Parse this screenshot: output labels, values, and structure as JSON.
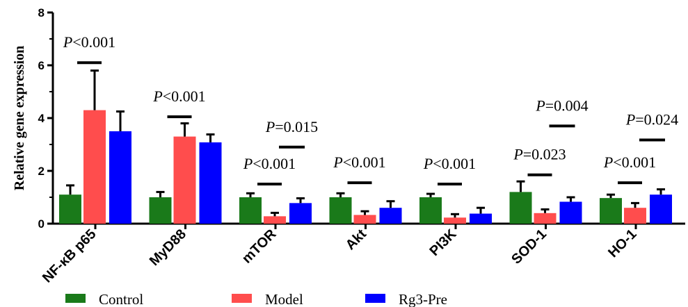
{
  "chart_data": {
    "type": "bar",
    "ylabel": "Relative gene expression",
    "xlabel": "",
    "ylim": [
      0,
      8
    ],
    "yticks": [
      "0",
      "2",
      "4",
      "6",
      "8"
    ],
    "categories": [
      "NF-κB p65",
      "MyD88",
      "mTOR",
      "Akt",
      "PI3K",
      "SOD-1",
      "HO-1"
    ],
    "series": [
      {
        "name": "Control",
        "color": "#1a7a1a",
        "values": [
          1.1,
          1.0,
          1.0,
          1.0,
          1.0,
          1.2,
          0.97
        ],
        "errors": [
          0.35,
          0.2,
          0.15,
          0.15,
          0.13,
          0.4,
          0.13
        ]
      },
      {
        "name": "Model",
        "color": "#ff4d4d",
        "values": [
          4.3,
          3.3,
          0.28,
          0.33,
          0.23,
          0.4,
          0.6
        ],
        "errors": [
          1.5,
          0.5,
          0.13,
          0.14,
          0.13,
          0.14,
          0.18
        ]
      },
      {
        "name": "Rg3-Pre",
        "color": "#0000ff",
        "values": [
          3.5,
          3.08,
          0.78,
          0.6,
          0.38,
          0.83,
          1.1
        ],
        "errors": [
          0.75,
          0.3,
          0.18,
          0.25,
          0.22,
          0.17,
          0.2
        ]
      }
    ],
    "annotations": [
      {
        "category": 0,
        "pair": "control-model",
        "p_italic": "P",
        "p_text": "<0.001",
        "line_y": 6.1
      },
      {
        "category": 1,
        "pair": "control-model",
        "p_italic": "P",
        "p_text": "<0.001",
        "line_y": 4.05
      },
      {
        "category": 2,
        "pair": "control-model",
        "p_italic": "P",
        "p_text": "<0.001",
        "line_y": 1.5
      },
      {
        "category": 2,
        "pair": "model-rg3",
        "p_italic": "P",
        "p_text": "=0.015",
        "line_y": 2.9
      },
      {
        "category": 3,
        "pair": "control-model",
        "p_italic": "P",
        "p_text": "<0.001",
        "line_y": 1.55
      },
      {
        "category": 4,
        "pair": "control-model",
        "p_italic": "P",
        "p_text": "<0.001",
        "line_y": 1.5
      },
      {
        "category": 5,
        "pair": "control-model",
        "p_italic": "P",
        "p_text": "=0.023",
        "line_y": 1.85
      },
      {
        "category": 5,
        "pair": "model-rg3",
        "p_italic": "P",
        "p_text": "=0.004",
        "line_y": 3.7
      },
      {
        "category": 6,
        "pair": "control-model",
        "p_italic": "P",
        "p_text": "<0.001",
        "line_y": 1.55
      },
      {
        "category": 6,
        "pair": "model-rg3",
        "p_italic": "P",
        "p_text": "=0.024",
        "line_y": 3.17
      }
    ],
    "legend_position": "bottom",
    "grid": false
  }
}
